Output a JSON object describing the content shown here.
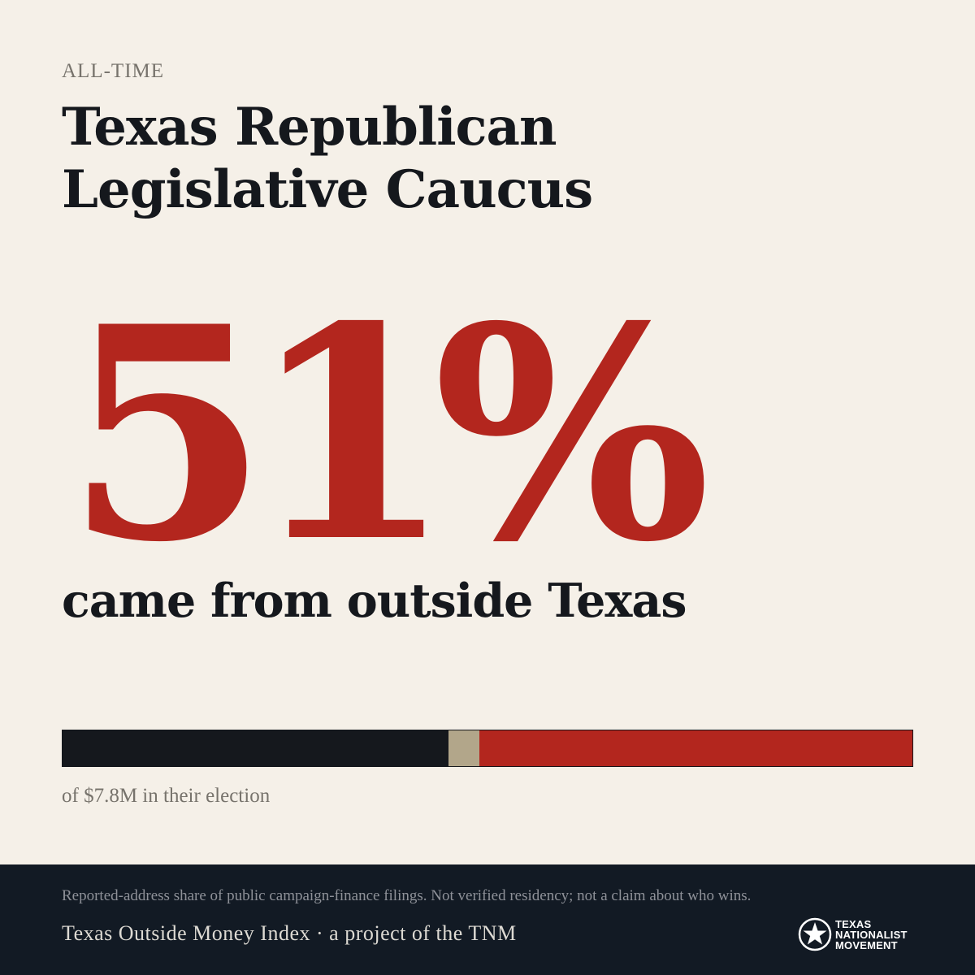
{
  "eyebrow": "ALL-TIME",
  "title": "Texas Republican Legislative Caucus",
  "headline_stat": "51%",
  "headline_caption": "came from outside Texas",
  "bar_caption": "of $7.8M in their election",
  "chart_data": {
    "type": "bar",
    "orientation": "horizontal-stacked",
    "series": [
      {
        "name": "",
        "value": 45.4,
        "color": "#15181d"
      },
      {
        "name": "",
        "value": 3.6,
        "color": "#b2a68a"
      },
      {
        "name": "",
        "value": 51.0,
        "color": "#b3261e"
      }
    ],
    "total": 100
  },
  "footer": {
    "disclaimer": "Reported-address share of public campaign-finance filings. Not verified residency; not a claim about who wins.",
    "credit": "Texas Outside Money Index · a project of the TNM",
    "logo_text": [
      "TEXAS",
      "NATIONALIST",
      "MOVEMENT"
    ]
  },
  "colors": {
    "background": "#f5f0e8",
    "accent": "#b3261e",
    "ink": "#15181d",
    "footer": "#121a24"
  }
}
